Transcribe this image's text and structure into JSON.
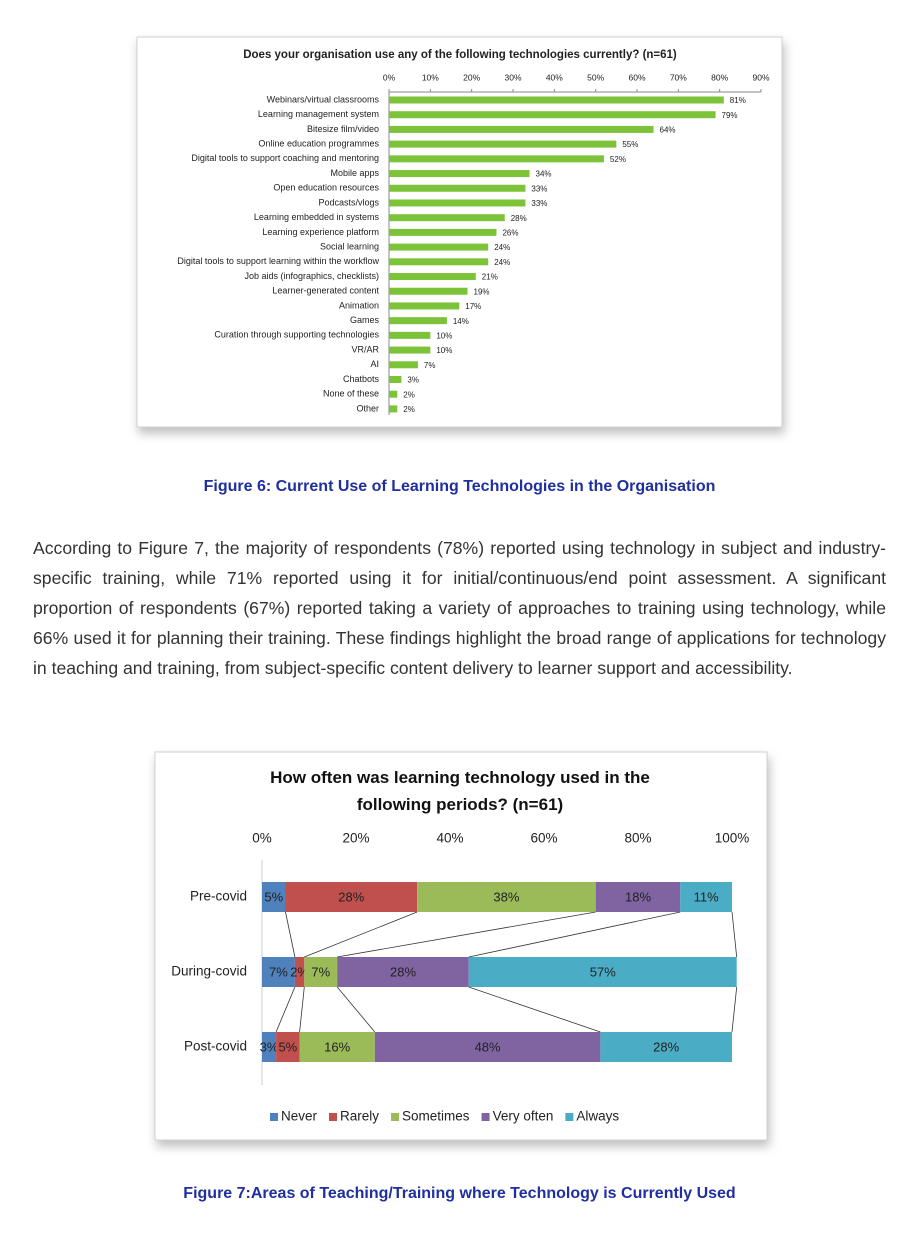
{
  "chart_data": [
    {
      "type": "bar",
      "orientation": "horizontal",
      "title": "Does your organisation use any of the following technologies currently? (n=61)",
      "categories": [
        "Webinars/virtual classrooms",
        "Learning management system",
        "Bitesize film/video",
        "Online education programmes",
        "Digital tools to support coaching and mentoring",
        "Mobile apps",
        "Open education resources",
        "Podcasts/vlogs",
        "Learning embedded in systems",
        "Learning experience platform",
        "Social learning",
        "Digital tools to support learning within the workflow",
        "Job aids (infographics, checklists)",
        "Learner-generated content",
        "Animation",
        "Games",
        "Curation through supporting technologies",
        "VR/AR",
        "AI",
        "Chatbots",
        "None of these",
        "Other"
      ],
      "values": [
        81,
        79,
        64,
        55,
        52,
        34,
        33,
        33,
        28,
        26,
        24,
        24,
        21,
        19,
        17,
        14,
        10,
        10,
        7,
        3,
        2,
        2
      ],
      "value_labels": [
        "81%",
        "79%",
        "64%",
        "55%",
        "52%",
        "34%",
        "33%",
        "33%",
        "28%",
        "26%",
        "24%",
        "24%",
        "21%",
        "19%",
        "17%",
        "14%",
        "10%",
        "10%",
        "7%",
        "3%",
        "2%",
        "2%"
      ],
      "color": "#7cc33a",
      "xlim": [
        0,
        90
      ],
      "xticks": [
        {
          "value": 0,
          "label": "0%"
        },
        {
          "value": 10,
          "label": "10%"
        },
        {
          "value": 20,
          "label": "20%"
        },
        {
          "value": 30,
          "label": "30%"
        },
        {
          "value": 40,
          "label": "40%"
        },
        {
          "value": 50,
          "label": "50%"
        },
        {
          "value": 60,
          "label": "60%"
        },
        {
          "value": 70,
          "label": "70%"
        },
        {
          "value": 80,
          "label": "80%"
        },
        {
          "value": 90,
          "label": "90%"
        }
      ]
    },
    {
      "type": "stacked_bar",
      "orientation": "horizontal",
      "title": "How often was learning technology used in the following periods? (n=61)",
      "categories": [
        "Pre-covid",
        "During-covid",
        "Post-covid"
      ],
      "series": [
        {
          "name": "Never",
          "color": "#4f81bd",
          "values": [
            5,
            7,
            3
          ],
          "value_labels": [
            "5%",
            "7%",
            "3%"
          ]
        },
        {
          "name": "Rarely",
          "color": "#c0504d",
          "values": [
            28,
            2,
            5
          ],
          "value_labels": [
            "28%",
            "2%",
            "5%"
          ]
        },
        {
          "name": "Sometimes",
          "color": "#9bbb59",
          "values": [
            38,
            7,
            16
          ],
          "value_labels": [
            "38%",
            "7%",
            "16%"
          ]
        },
        {
          "name": "Very often",
          "color": "#8064a2",
          "values": [
            18,
            28,
            48
          ],
          "value_labels": [
            "18%",
            "28%",
            "48%"
          ]
        },
        {
          "name": "Always",
          "color": "#4bacc6",
          "values": [
            11,
            57,
            28
          ],
          "value_labels": [
            "11%",
            "57%",
            "28%"
          ]
        }
      ],
      "xlim": [
        0,
        100
      ],
      "xticks": [
        {
          "value": 0,
          "label": "0%"
        },
        {
          "value": 20,
          "label": "20%"
        },
        {
          "value": 40,
          "label": "40%"
        },
        {
          "value": 60,
          "label": "60%"
        },
        {
          "value": 80,
          "label": "80%"
        },
        {
          "value": 100,
          "label": "100%"
        }
      ],
      "legend": "bottom"
    }
  ],
  "captions": [
    "Figure 6: Current Use of Learning Technologies in the Organisation",
    "Figure 7:Areas of Teaching/Training where Technology is Currently Used"
  ],
  "paragraph": "According to Figure 7, the majority of respondents (78%) reported using technology in subject and industry-specific training, while 71% reported using it for initial/continuous/end point assessment. A significant proportion of respondents (67%) reported taking a variety of approaches to training using technology, while 66% used it for planning their training. These findings highlight the broad range of applications for technology in teaching and training, from subject-specific content delivery to learner support and accessibility."
}
